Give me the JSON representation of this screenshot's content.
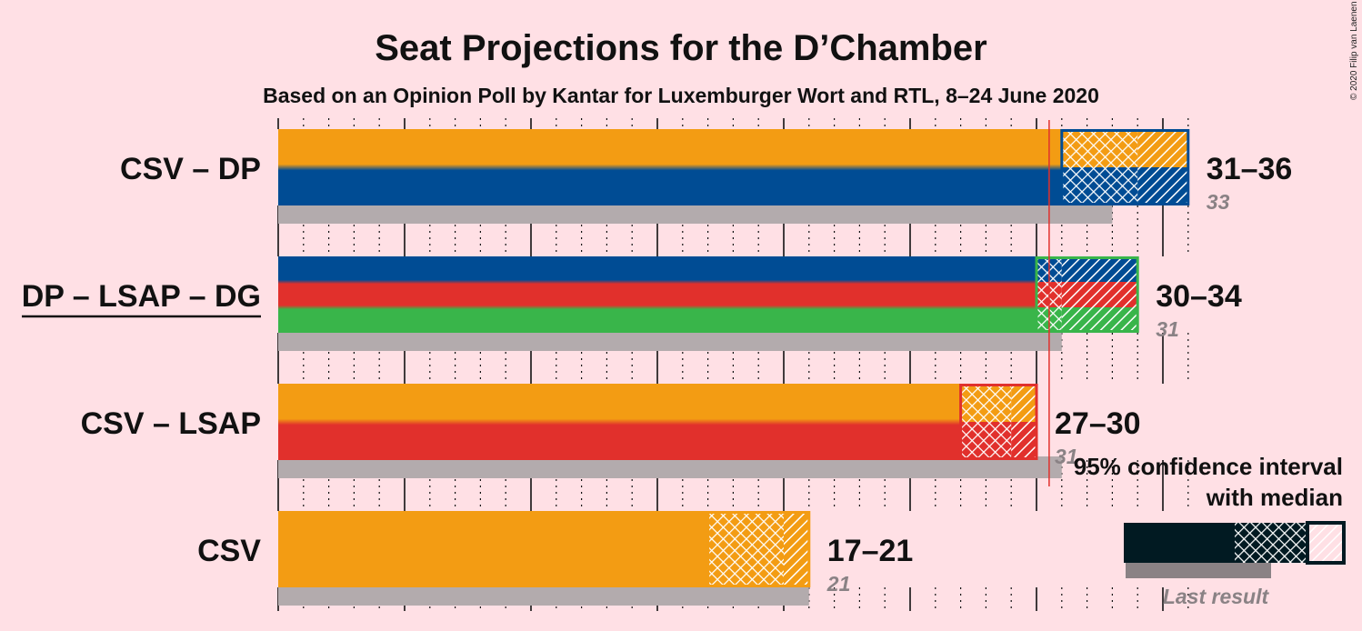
{
  "title": "Seat Projections for the D’Chamber",
  "subtitle": "Based on an Opinion Poll by Kantar for Luxemburger Wort and RTL, 8–24 June 2020",
  "copyright": "© 2020 Filip van Laenen",
  "colors": {
    "background": "#FFE0E5",
    "CSV": "#F39C13",
    "DP": "#004C94",
    "LSAP": "#E1302C",
    "DG": "#39B54A",
    "last_result": "#B3ABAD",
    "majority_line": "#E1302C",
    "legend": "#011A22"
  },
  "legend": {
    "line1": "95% confidence interval",
    "line2": "with median",
    "last_result": "Last result"
  },
  "chart_data": {
    "type": "bar",
    "title": "Seat Projections for the D’Chamber",
    "subtitle": "Based on an Opinion Poll by Kantar for Luxemburger Wort and RTL, 8–24 June 2020",
    "xlim": [
      0,
      36
    ],
    "majority": 30.5,
    "grid": "dotted ticks every seat, solid every 5 seats",
    "categories": [
      "CSV – DP",
      "DP – LSAP – DG",
      "CSV – LSAP",
      "CSV"
    ],
    "series": [
      {
        "coalition": "CSV – DP",
        "parties": [
          "CSV",
          "DP"
        ],
        "low": 31,
        "median": 34,
        "high": 36,
        "range_label": "31–36",
        "last_result": 33,
        "last_label": "33",
        "underline": false
      },
      {
        "coalition": "DP – LSAP – DG",
        "parties": [
          "DP",
          "LSAP",
          "DG"
        ],
        "low": 30,
        "median": 31,
        "high": 34,
        "range_label": "30–34",
        "last_result": 31,
        "last_label": "31",
        "underline": true
      },
      {
        "coalition": "CSV – LSAP",
        "parties": [
          "CSV",
          "LSAP"
        ],
        "low": 27,
        "median": 29,
        "high": 30,
        "range_label": "27–30",
        "last_result": 31,
        "last_label": "31",
        "underline": false
      },
      {
        "coalition": "CSV",
        "parties": [
          "CSV"
        ],
        "low": 17,
        "median": 20,
        "high": 21,
        "range_label": "17–21",
        "last_result": 21,
        "last_label": "21",
        "underline": false
      }
    ]
  }
}
